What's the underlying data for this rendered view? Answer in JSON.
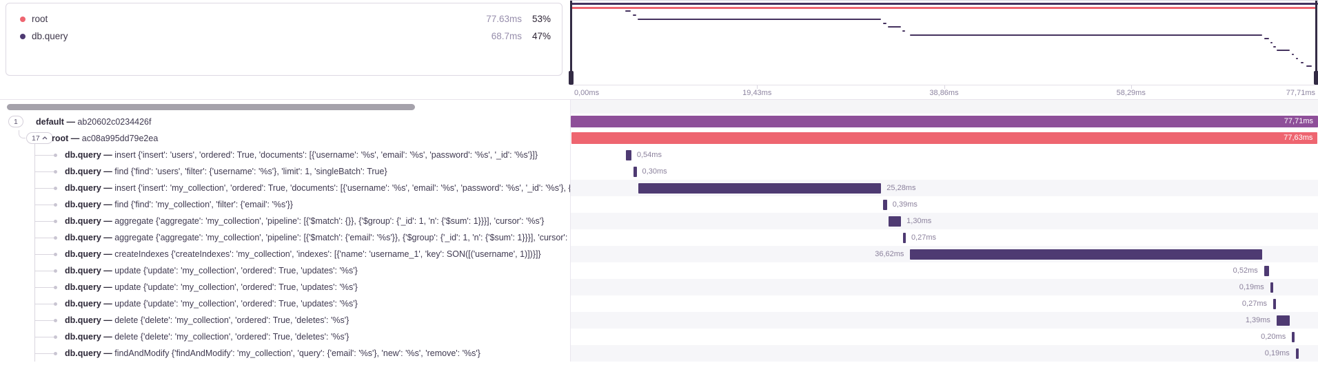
{
  "colors": {
    "root": "#ee6570",
    "span": "#4e3a72",
    "txn_default": "#8e4f99",
    "minimap_purple": "#44315e"
  },
  "legend": {
    "items": [
      {
        "label": "root",
        "duration": "77.63ms",
        "percent": "53%",
        "color": "#ee6570"
      },
      {
        "label": "db.query",
        "duration": "68.7ms",
        "percent": "47%",
        "color": "#4e3a72"
      }
    ]
  },
  "time_axis": {
    "ticks": [
      {
        "label": "0,00ms",
        "pos": 0
      },
      {
        "label": "19,43ms",
        "pos": 25
      },
      {
        "label": "38,86ms",
        "pos": 50
      },
      {
        "label": "58,29ms",
        "pos": 75
      },
      {
        "label": "77,71ms",
        "pos": 100
      }
    ]
  },
  "trace": {
    "total_ms": 77.71,
    "rows": [
      {
        "kind": "txn",
        "badge": "1",
        "chevron": false,
        "name": "default",
        "sep": "—",
        "desc": "ab20602c0234426f",
        "start": 0,
        "dur": 77.71,
        "label": "77,71ms",
        "label_pos": "inside",
        "color_key": "txn_default",
        "stripe": false
      },
      {
        "kind": "txn",
        "badge": "17",
        "chevron": true,
        "name": "root",
        "sep": "—",
        "desc": "ac08a995dd79e2ea",
        "start": 0.04,
        "dur": 77.63,
        "label": "77,63ms",
        "label_pos": "inside",
        "color_key": "root",
        "stripe": false
      },
      {
        "kind": "span",
        "name": "db.query",
        "sep": "—",
        "desc": "insert {'insert': 'users', 'ordered': True, 'documents': [{'username': '%s', 'email': '%s', 'password': '%s', '_id': '%s'}]}",
        "start": 5.76,
        "dur": 0.54,
        "label": "0,54ms",
        "label_pos": "right",
        "color_key": "span",
        "stripe": false
      },
      {
        "kind": "span",
        "name": "db.query",
        "sep": "—",
        "desc": "find {'find': 'users', 'filter': {'username': '%s'}, 'limit': 1, 'singleBatch': True}",
        "start": 6.55,
        "dur": 0.3,
        "label": "0,30ms",
        "label_pos": "right",
        "color_key": "span",
        "stripe": false
      },
      {
        "kind": "span",
        "name": "db.query",
        "sep": "—",
        "desc": "insert {'insert': 'my_collection', 'ordered': True, 'documents': [{'username': '%s', 'email': '%s', 'password': '%s', '_id': '%s'}, {'username': '%s', 'email': '%s', 'password': '%s', '_id': '%s'}]}",
        "start": 7.0,
        "dur": 25.28,
        "label": "25,28ms",
        "label_pos": "right",
        "color_key": "span",
        "stripe": true
      },
      {
        "kind": "span",
        "name": "db.query",
        "sep": "—",
        "desc": "find {'find': 'my_collection', 'filter': {'email': '%s'}}",
        "start": 32.5,
        "dur": 0.39,
        "label": "0,39ms",
        "label_pos": "right",
        "color_key": "span",
        "stripe": false
      },
      {
        "kind": "span",
        "name": "db.query",
        "sep": "—",
        "desc": "aggregate {'aggregate': 'my_collection', 'pipeline': [{'$match': {}}, {'$group': {'_id': 1, 'n': {'$sum': 1}}}], 'cursor': '%s'}",
        "start": 33.05,
        "dur": 1.3,
        "label": "1,30ms",
        "label_pos": "right",
        "color_key": "span",
        "stripe": true
      },
      {
        "kind": "span",
        "name": "db.query",
        "sep": "—",
        "desc": "aggregate {'aggregate': 'my_collection', 'pipeline': [{'$match': {'email': '%s'}}, {'$group': {'_id': 1, 'n': {'$sum': 1}}}], 'cursor': '%s'}",
        "start": 34.55,
        "dur": 0.27,
        "label": "0,27ms",
        "label_pos": "right",
        "color_key": "span",
        "stripe": false
      },
      {
        "kind": "span",
        "name": "db.query",
        "sep": "—",
        "desc": "createIndexes {'createIndexes': 'my_collection', 'indexes': [{'name': 'username_1', 'key': SON([('username', 1)])}]}",
        "start": 35.3,
        "dur": 36.62,
        "label": "36,62ms",
        "label_pos": "left",
        "color_key": "span",
        "stripe": true
      },
      {
        "kind": "span",
        "name": "db.query",
        "sep": "—",
        "desc": "update {'update': 'my_collection', 'ordered': True, 'updates': '%s'}",
        "start": 72.1,
        "dur": 0.52,
        "label": "0,52ms",
        "label_pos": "left",
        "color_key": "span",
        "stripe": false
      },
      {
        "kind": "span",
        "name": "db.query",
        "sep": "—",
        "desc": "update {'update': 'my_collection', 'ordered': True, 'updates': '%s'}",
        "start": 72.75,
        "dur": 0.19,
        "label": "0,19ms",
        "label_pos": "left",
        "color_key": "span",
        "stripe": true
      },
      {
        "kind": "span",
        "name": "db.query",
        "sep": "—",
        "desc": "update {'update': 'my_collection', 'ordered': True, 'updates': '%s'}",
        "start": 73.05,
        "dur": 0.27,
        "label": "0,27ms",
        "label_pos": "left",
        "color_key": "span",
        "stripe": false
      },
      {
        "kind": "span",
        "name": "db.query",
        "sep": "—",
        "desc": "delete {'delete': 'my_collection', 'ordered': True, 'deletes': '%s'}",
        "start": 73.4,
        "dur": 1.39,
        "label": "1,39ms",
        "label_pos": "left",
        "color_key": "span",
        "stripe": true
      },
      {
        "kind": "span",
        "name": "db.query",
        "sep": "—",
        "desc": "delete {'delete': 'my_collection', 'ordered': True, 'deletes': '%s'}",
        "start": 75.0,
        "dur": 0.2,
        "label": "0,20ms",
        "label_pos": "left",
        "color_key": "span",
        "stripe": false
      },
      {
        "kind": "span",
        "name": "db.query",
        "sep": "—",
        "desc": "findAndModify {'findAndModify': 'my_collection', 'query': {'email': '%s'}, 'new': '%s', 'remove': '%s'}",
        "start": 75.4,
        "dur": 0.19,
        "label": "0,19ms",
        "label_pos": "left",
        "color_key": "span",
        "stripe": true
      }
    ],
    "minimap_extra_spans": [
      {
        "start": 75.9,
        "dur": 0.3
      },
      {
        "start": 76.5,
        "dur": 0.55
      }
    ]
  }
}
